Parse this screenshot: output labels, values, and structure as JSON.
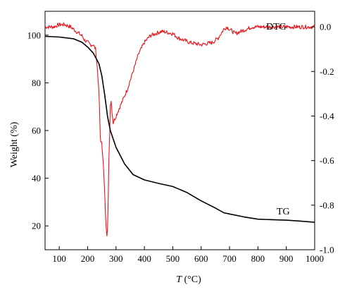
{
  "chart_data": {
    "type": "line",
    "xlabel": {
      "var": "T",
      "unit": " (°C)"
    },
    "ylabel": "Weight (%)",
    "xlim": [
      50,
      1000
    ],
    "ylim_left": [
      10,
      110
    ],
    "ylim_right": [
      -1.0,
      0.07
    ],
    "xticks": [
      100,
      200,
      300,
      400,
      500,
      600,
      700,
      800,
      900,
      1000
    ],
    "yticks_left": [
      20,
      40,
      60,
      80,
      100
    ],
    "yticks_right": [
      "0.0",
      "-0.2",
      "-0.4",
      "-0.6",
      "-0.8",
      "-1.0"
    ],
    "yticks_right_values": [
      0.0,
      -0.2,
      -0.4,
      -0.6,
      -0.8,
      -1.0
    ],
    "grid": false,
    "series": [
      {
        "name": "TG",
        "axis": "left",
        "color": "#000000",
        "x": [
          50,
          100,
          150,
          180,
          200,
          220,
          240,
          250,
          260,
          270,
          280,
          300,
          330,
          360,
          400,
          450,
          500,
          550,
          600,
          650,
          680,
          700,
          750,
          800,
          850,
          900,
          950,
          1000
        ],
        "y": [
          99.5,
          99.2,
          98.5,
          97,
          95,
          92.5,
          88,
          83,
          75,
          66,
          60,
          53,
          46,
          41.5,
          39.3,
          37.8,
          36.5,
          34,
          30.5,
          27.5,
          25.5,
          25,
          23.8,
          22.8,
          22.6,
          22.4,
          22,
          21.5
        ]
      },
      {
        "name": "DTG",
        "axis": "right",
        "color": "#e8141c",
        "x": [
          50,
          80,
          100,
          120,
          140,
          160,
          180,
          190,
          200,
          210,
          220,
          228,
          235,
          240,
          245,
          250,
          255,
          260,
          265,
          268,
          270,
          272,
          275,
          278,
          280,
          283,
          286,
          290,
          300,
          320,
          340,
          360,
          380,
          400,
          420,
          440,
          460,
          480,
          500,
          520,
          540,
          560,
          580,
          600,
          620,
          640,
          660,
          680,
          690,
          700,
          720,
          740,
          760,
          780,
          800,
          820,
          840,
          860,
          880,
          900,
          920,
          940,
          960,
          980,
          1000
        ],
        "y": [
          0.0,
          0.0,
          0.01,
          0.01,
          0.0,
          -0.02,
          -0.04,
          -0.06,
          -0.07,
          -0.08,
          -0.08,
          -0.1,
          -0.2,
          -0.3,
          -0.5,
          -0.53,
          -0.6,
          -0.75,
          -0.9,
          -0.93,
          -0.9,
          -0.8,
          -0.6,
          -0.47,
          -0.35,
          -0.33,
          -0.38,
          -0.43,
          -0.4,
          -0.34,
          -0.28,
          -0.2,
          -0.12,
          -0.07,
          -0.04,
          -0.03,
          -0.02,
          -0.025,
          -0.03,
          -0.05,
          -0.06,
          -0.07,
          -0.075,
          -0.08,
          -0.075,
          -0.07,
          -0.05,
          -0.01,
          0.0,
          -0.01,
          -0.03,
          -0.02,
          -0.01,
          0.0,
          0.0,
          0.0,
          0.0,
          0.0,
          0.0,
          0.0,
          0.0,
          0.0,
          0.0,
          0.0,
          0.0
        ]
      }
    ]
  }
}
